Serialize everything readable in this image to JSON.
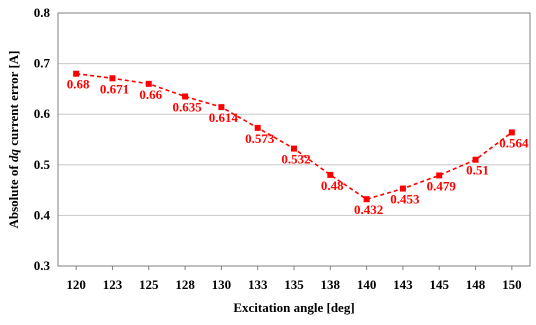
{
  "chart_data": {
    "type": "line",
    "xlabel": "Excitation angle [deg]",
    "ylabel_parts": [
      "Absolute of ",
      "dq",
      " current error [A]"
    ],
    "categories": [
      "120",
      "123",
      "125",
      "128",
      "130",
      "133",
      "135",
      "138",
      "140",
      "143",
      "145",
      "148",
      "150"
    ],
    "series": [
      {
        "values": [
          0.68,
          0.671,
          0.66,
          0.635,
          0.614,
          0.573,
          0.532,
          0.48,
          0.432,
          0.453,
          0.479,
          0.51,
          0.564
        ],
        "labels": [
          "0.68",
          "0.671",
          "0.66",
          "0.635",
          "0.614",
          "0.573",
          "0.532",
          "0.48",
          "0.432",
          "0.453",
          "0.479",
          "0.51",
          "0.564"
        ]
      }
    ],
    "yticks": [
      "0.3",
      "0.4",
      "0.5",
      "0.6",
      "0.7",
      "0.8"
    ],
    "ylim": [
      0.3,
      0.8
    ],
    "grid": true,
    "line_style": "dashed",
    "marker": "square",
    "series_color": "#ff0000",
    "grid_color": "#c8c8c8"
  }
}
